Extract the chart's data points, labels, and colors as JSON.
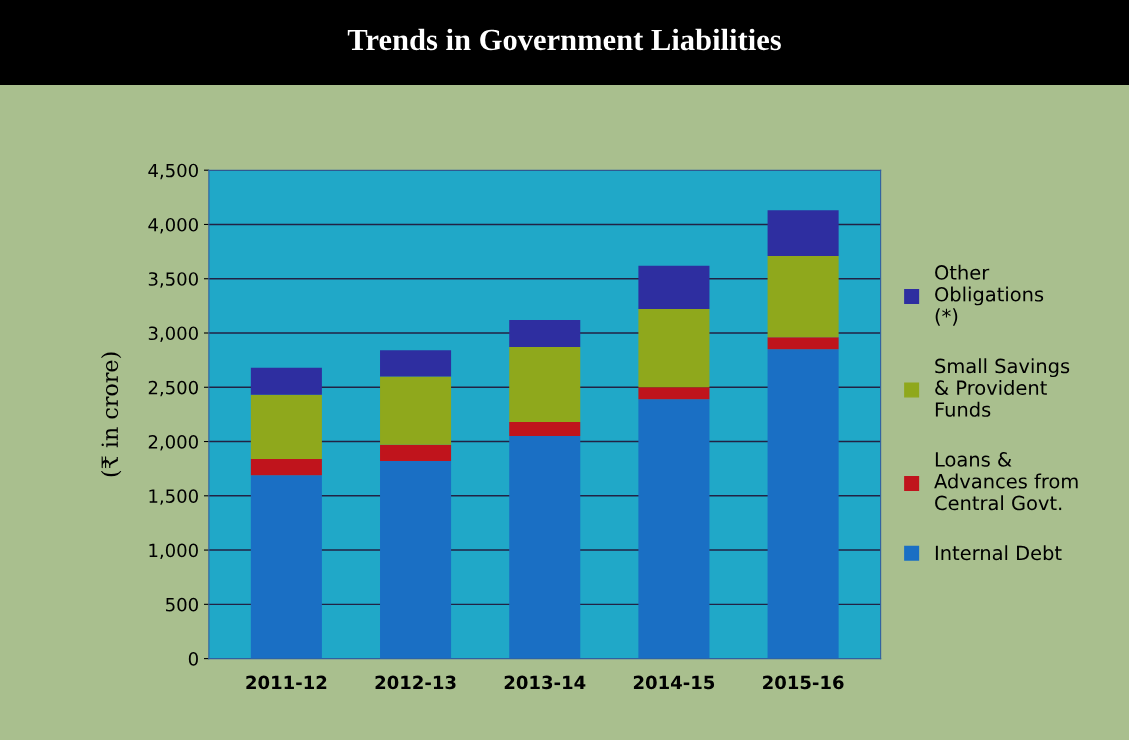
{
  "chart_data": {
    "type": "bar",
    "stacked": true,
    "title": "Trends in Government Liabilities",
    "ylabel": "(₹ in crore)",
    "categories": [
      "2011-12",
      "2012-13",
      "2013-14",
      "2014-15",
      "2015-16"
    ],
    "series": [
      {
        "name": "Internal Debt",
        "color": "#1a6fc4",
        "values": [
          1690,
          1820,
          2050,
          2390,
          2850
        ]
      },
      {
        "name": "Loans & Advances from Central Govt.",
        "color": "#c0141c",
        "values": [
          150,
          150,
          130,
          110,
          110
        ]
      },
      {
        "name": "Small Savings & Provident Funds",
        "color": "#8fa81c",
        "values": [
          590,
          630,
          690,
          720,
          750
        ]
      },
      {
        "name": "Other Obligations (*)",
        "color": "#2e2ea0",
        "values": [
          250,
          240,
          250,
          400,
          420
        ]
      }
    ],
    "ylim": [
      0,
      4500
    ],
    "yticks": [
      {
        "value": 0,
        "label": "0"
      },
      {
        "value": 500,
        "label": "500"
      },
      {
        "value": 1000,
        "label": "1,000"
      },
      {
        "value": 1500,
        "label": "1,500"
      },
      {
        "value": 2000,
        "label": "2,000"
      },
      {
        "value": 2500,
        "label": "2,500"
      },
      {
        "value": 3000,
        "label": "3,000"
      },
      {
        "value": 3500,
        "label": "3,500"
      },
      {
        "value": 4000,
        "label": "4,000"
      },
      {
        "value": 4500,
        "label": "4,500"
      }
    ],
    "grid": "y",
    "legend": "right"
  }
}
